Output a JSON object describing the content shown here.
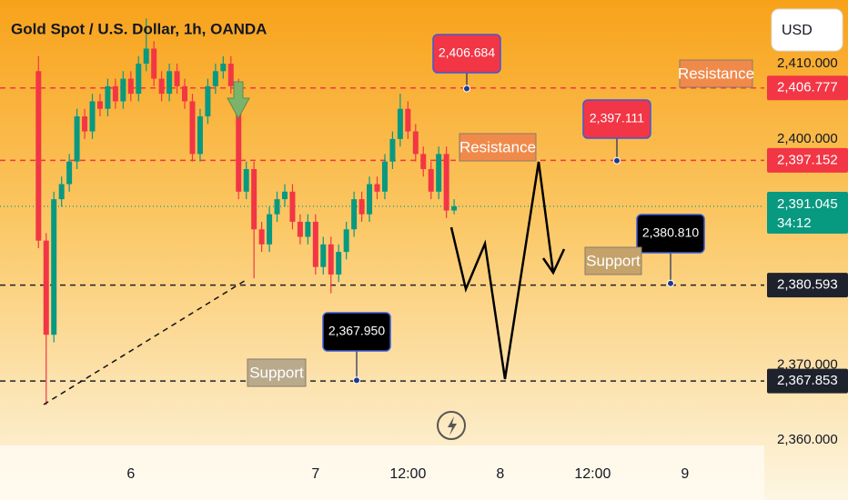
{
  "chart_data": {
    "type": "candlestick",
    "title": "Gold Spot / U.S. Dollar, 1h, OANDA",
    "currency": "USD",
    "up_color": "#089981",
    "down_color": "#f23645",
    "x": [
      12,
      13,
      14,
      15,
      16,
      17,
      18,
      19,
      20,
      21,
      22,
      23,
      24,
      25,
      26,
      27,
      28,
      29,
      30,
      31,
      32,
      33,
      34,
      35,
      36,
      37,
      38,
      39,
      40,
      41,
      42,
      43,
      44,
      45,
      46,
      47,
      48,
      49,
      50,
      51,
      52,
      53,
      54,
      55,
      56,
      57,
      58,
      59,
      60,
      61,
      62,
      63,
      64,
      65,
      66
    ],
    "open": [
      2409,
      2386.5,
      2374,
      2392,
      2394,
      2397,
      2403,
      2401,
      2405,
      2404,
      2407,
      2405,
      2408,
      2406,
      2410,
      2412,
      2408,
      2406,
      2409,
      2407,
      2405,
      2398,
      2403,
      2407,
      2409,
      2410,
      2407,
      2393,
      2396,
      2388,
      2386,
      2390,
      2392,
      2393,
      2389,
      2387,
      2389,
      2383,
      2386,
      2382,
      2385,
      2388,
      2392,
      2390,
      2394,
      2393,
      2397,
      2400,
      2404,
      2401,
      2398,
      2396,
      2393,
      2398,
      2390.5
    ],
    "high": [
      2411,
      2387.5,
      2393,
      2395,
      2398,
      2404,
      2404,
      2406,
      2406,
      2408,
      2408,
      2409,
      2409,
      2411,
      2416,
      2413,
      2409,
      2410,
      2410,
      2408,
      2406,
      2404,
      2408,
      2410,
      2411,
      2411,
      2408,
      2397,
      2397,
      2389,
      2391,
      2393,
      2394,
      2394,
      2390,
      2390,
      2390,
      2387,
      2387,
      2386,
      2389,
      2393,
      2393,
      2395,
      2395,
      2398,
      2401,
      2406,
      2405,
      2402,
      2399,
      2397,
      2399,
      2399,
      2392
    ],
    "low": [
      2385.5,
      2364.7,
      2373,
      2391,
      2393,
      2396,
      2400,
      2400,
      2403,
      2403,
      2404,
      2404,
      2405,
      2405,
      2409,
      2407,
      2405,
      2405,
      2406,
      2404,
      2397,
      2397,
      2402,
      2406,
      2408,
      2406,
      2392,
      2392,
      2381.5,
      2385,
      2385,
      2389,
      2391,
      2388,
      2386,
      2386,
      2382,
      2382,
      2379.5,
      2381,
      2384,
      2387,
      2389,
      2389,
      2392,
      2392,
      2396,
      2399,
      2400,
      2397,
      2395,
      2392,
      2392,
      2389.5,
      2390
    ],
    "close": [
      2386.5,
      2374,
      2392,
      2394,
      2397,
      2403,
      2401,
      2405,
      2404,
      2407,
      2405,
      2408,
      2406,
      2410,
      2412,
      2408,
      2406,
      2409,
      2407,
      2405,
      2398,
      2403,
      2407,
      2409,
      2410,
      2407,
      2393,
      2396,
      2388,
      2386,
      2390,
      2392,
      2393,
      2389,
      2387,
      2389,
      2383,
      2386,
      2382,
      2385,
      2388,
      2392,
      2390,
      2394,
      2393,
      2397,
      2400,
      2404,
      2401,
      2398,
      2396,
      2393,
      2398,
      2390.5,
      2391.045
    ],
    "xlim": [
      7,
      106.3
    ],
    "xticks": [
      {
        "value": 24,
        "label": "6"
      },
      {
        "value": 48,
        "label": "7"
      },
      {
        "value": 60,
        "label": "12:00"
      },
      {
        "value": 72,
        "label": "8"
      },
      {
        "value": 84,
        "label": "12:00"
      },
      {
        "value": 96,
        "label": "9"
      }
    ],
    "ylim": [
      2359.3,
      2418.45
    ],
    "yticks": [
      {
        "value": 2410,
        "label": "2,410.000"
      },
      {
        "value": 2400,
        "label": "2,400.000"
      },
      {
        "value": 2370,
        "label": "2,370.000"
      },
      {
        "value": 2360,
        "label": "2,360.000"
      }
    ],
    "levels": [
      {
        "value": 2406.777,
        "label": "2,406.777",
        "color": "#f23645"
      },
      {
        "value": 2397.152,
        "label": "2,397.152",
        "color": "#f23645"
      },
      {
        "value": 2391.045,
        "label": "2,391.045",
        "color": "#089981",
        "countdown": "34:12"
      },
      {
        "value": 2380.593,
        "label": "2,380.593",
        "color": "#1e222d"
      },
      {
        "value": 2367.853,
        "label": "2,367.853",
        "color": "#1e222d"
      }
    ],
    "callouts": [
      {
        "value": 2406.684,
        "label": "2,406.684",
        "color": "#f23645"
      },
      {
        "value": 2397.111,
        "label": "2,397.111",
        "color": "#f23645"
      },
      {
        "value": 2380.81,
        "label": "2,380.810",
        "color": "#000000"
      },
      {
        "value": 2367.95,
        "label": "2,367.950",
        "color": "#000000"
      }
    ],
    "zones": [
      "Resistance",
      "Resistance",
      "Support",
      "Support"
    ]
  }
}
